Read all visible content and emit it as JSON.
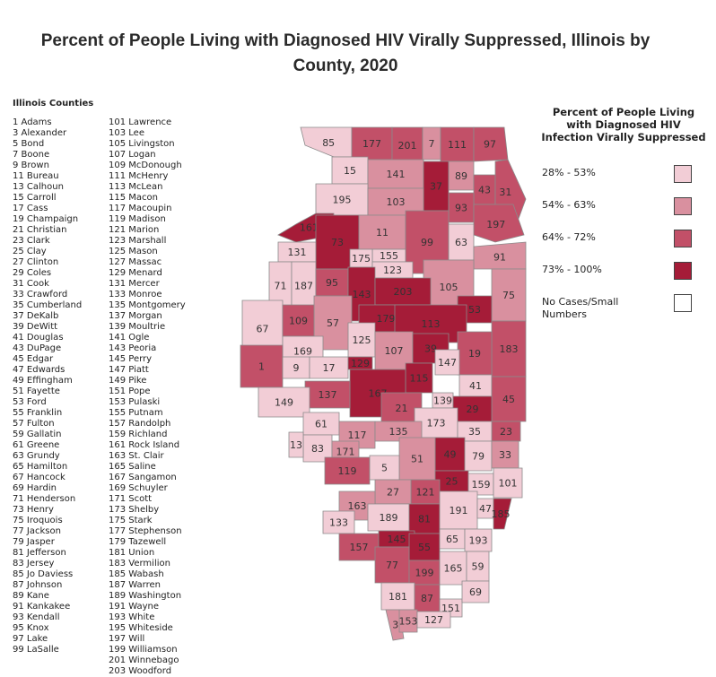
{
  "title_line1": "Percent of People Living with Diagnosed HIV Virally Suppressed, Illinois by",
  "title_line2": "County, 2020",
  "counties_heading": "Illinois Counties",
  "counties": [
    "1 Adams",
    "3 Alexander",
    "5 Bond",
    "7 Boone",
    "9 Brown",
    "11 Bureau",
    "13 Calhoun",
    "15 Carroll",
    "17 Cass",
    "19 Champaign",
    "21 Christian",
    "23 Clark",
    "25 Clay",
    "27 Clinton",
    "29 Coles",
    "31 Cook",
    "33 Crawford",
    "35 Cumberland",
    "37 DeKalb",
    "39 DeWitt",
    "41 Douglas",
    "43 DuPage",
    "45 Edgar",
    "47 Edwards",
    "49 Effingham",
    "51 Fayette",
    "53 Ford",
    "55 Franklin",
    "57 Fulton",
    "59 Gallatin",
    "61 Greene",
    "63 Grundy",
    "65 Hamilton",
    "67 Hancock",
    "69 Hardin",
    "71 Henderson",
    "73 Henry",
    "75 Iroquois",
    "77 Jackson",
    "79 Jasper",
    "81 Jefferson",
    "83 Jersey",
    "85 Jo Daviess",
    "87 Johnson",
    "89 Kane",
    "91 Kankakee",
    "93 Kendall",
    "95 Knox",
    "97 Lake",
    "99 LaSalle",
    "101 Lawrence",
    "103 Lee",
    "105 Livingston",
    "107 Logan",
    "109 McDonough",
    "111 McHenry",
    "113 McLean",
    "115 Macon",
    "117 Macoupin",
    "119 Madison",
    "121 Marion",
    "123 Marshall",
    "125 Mason",
    "127 Massac",
    "129 Menard",
    "131 Mercer",
    "133 Monroe",
    "135 Montgomery",
    "137 Morgan",
    "139 Moultrie",
    "141 Ogle",
    "143 Peoria",
    "145 Perry",
    "147 Piatt",
    "149 Pike",
    "151 Pope",
    "153 Pulaski",
    "155 Putnam",
    "157 Randolph",
    "159 Richland",
    "161 Rock Island",
    "163 St. Clair",
    "165 Saline",
    "167 Sangamon",
    "169 Schuyler",
    "171 Scott",
    "173 Shelby",
    "175 Stark",
    "177 Stephenson",
    "179 Tazewell",
    "181 Union",
    "183 Vermilion",
    "185 Wabash",
    "187 Warren",
    "189 Washington",
    "191 Wayne",
    "193 White",
    "195 Whiteside",
    "197 Will",
    "199 Williamson",
    "201 Winnebago",
    "203 Woodford"
  ],
  "legend": {
    "title_lines": [
      "Percent of People Living",
      "with Diagnosed HIV",
      "Infection Virally Suppressed"
    ],
    "items": [
      {
        "label": "28% - 53%",
        "color": "#f2cdd6"
      },
      {
        "label": "54% - 63%",
        "color": "#d9909f"
      },
      {
        "label": "64% - 72%",
        "color": "#c25068"
      },
      {
        "label": "73% - 100%",
        "color": "#a51c38"
      },
      {
        "label": "No Cases/Small Numbers",
        "color": "#ffffff"
      }
    ]
  },
  "map": {
    "county_classes": {
      "1": 2,
      "3": 1,
      "5": 0,
      "7": 1,
      "9": 0,
      "11": 1,
      "13": 0,
      "15": 0,
      "17": 0,
      "19": 2,
      "21": 2,
      "23": 2,
      "25": 3,
      "27": 1,
      "29": 3,
      "31": 2,
      "33": 1,
      "35": 0,
      "37": 3,
      "39": 3,
      "41": 0,
      "43": 2,
      "45": 2,
      "47": 0,
      "49": 3,
      "51": 1,
      "53": 3,
      "55": 3,
      "57": 1,
      "59": 0,
      "61": 0,
      "63": 0,
      "65": 0,
      "67": 0,
      "69": 0,
      "71": 0,
      "73": 3,
      "75": 1,
      "77": 2,
      "79": 0,
      "81": 3,
      "83": 0,
      "85": 0,
      "87": 2,
      "89": 1,
      "91": 1,
      "93": 2,
      "95": 2,
      "97": 2,
      "99": 2,
      "101": 0,
      "103": 1,
      "105": 1,
      "107": 1,
      "109": 2,
      "111": 2,
      "113": 3,
      "115": 3,
      "117": 1,
      "119": 2,
      "121": 2,
      "123": 0,
      "125": 0,
      "127": 0,
      "129": 3,
      "131": 0,
      "133": 0,
      "135": 1,
      "137": 2,
      "139": 0,
      "141": 1,
      "143": 3,
      "145": 3,
      "147": 0,
      "149": 0,
      "151": 0,
      "153": 1,
      "155": 0,
      "157": 2,
      "159": 0,
      "161": 3,
      "163": 1,
      "165": 0,
      "167": 3,
      "169": 0,
      "171": 1,
      "173": 0,
      "175": 0,
      "177": 2,
      "179": 3,
      "181": 0,
      "183": 2,
      "185": 3,
      "187": 0,
      "189": 0,
      "191": 0,
      "193": 0,
      "195": 0,
      "197": 2,
      "199": 2,
      "201": 2,
      "203": 3
    }
  }
}
